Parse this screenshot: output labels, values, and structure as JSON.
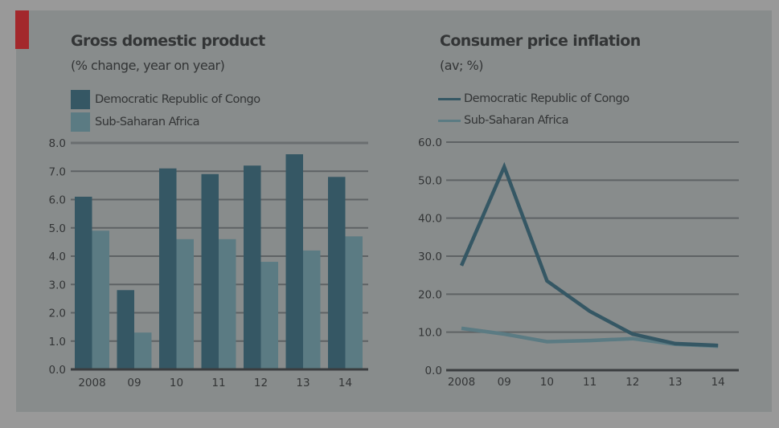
{
  "colors": {
    "drc": "#355764",
    "ssa": "#5b7b83",
    "accent_tab": "#a3282c",
    "grid": "#5e6264",
    "axis": "#3a3d3f"
  },
  "chart_data": [
    {
      "type": "bar",
      "title": "Gross domestic product",
      "subtitle": "(% change, year on year)",
      "xlabel": "",
      "ylabel": "",
      "categories": [
        "2008",
        "09",
        "10",
        "11",
        "12",
        "13",
        "14"
      ],
      "series": [
        {
          "name": "Democratic Republic of Congo",
          "values": [
            6.1,
            2.8,
            7.1,
            6.9,
            7.2,
            7.6,
            6.8
          ]
        },
        {
          "name": "Sub-Saharan Africa",
          "values": [
            4.9,
            1.3,
            4.6,
            4.6,
            3.8,
            4.2,
            4.7
          ]
        }
      ],
      "ylim": [
        0,
        8
      ],
      "yticks": [
        "0.0",
        "1.0",
        "2.0",
        "3.0",
        "4.0",
        "5.0",
        "6.0",
        "7.0",
        "8.0"
      ],
      "grid": true,
      "legend": "top-left"
    },
    {
      "type": "line",
      "title": "Consumer price inflation",
      "subtitle": "(av; %)",
      "xlabel": "",
      "ylabel": "",
      "categories": [
        "2008",
        "09",
        "10",
        "11",
        "12",
        "13",
        "14"
      ],
      "series": [
        {
          "name": "Democratic Republic of Congo",
          "values": [
            27.5,
            53.5,
            23.5,
            15.5,
            9.5,
            7.0,
            6.5
          ]
        },
        {
          "name": "Sub-Saharan Africa",
          "values": [
            11.0,
            9.5,
            7.5,
            7.8,
            8.3,
            6.8,
            6.3
          ]
        }
      ],
      "ylim": [
        0,
        60
      ],
      "yticks": [
        "0.0",
        "10.0",
        "20.0",
        "30.0",
        "40.0",
        "50.0",
        "60.0"
      ],
      "grid": true,
      "legend": "top-left"
    }
  ]
}
